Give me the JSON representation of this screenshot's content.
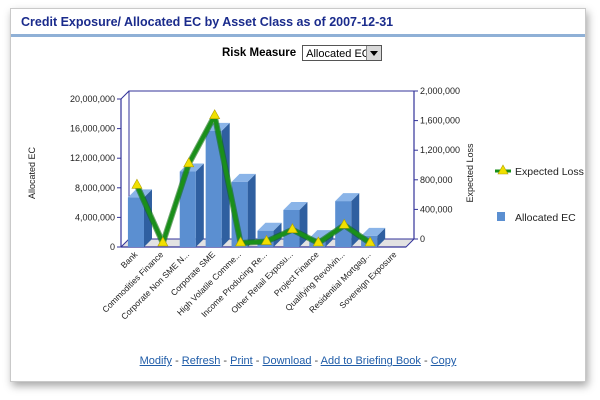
{
  "header": {
    "title": "Credit Exposure/ Allocated EC by Asset Class as of 2007-12-31"
  },
  "controls": {
    "risk_measure_label": "Risk Measure",
    "risk_measure_value": "Allocated EC"
  },
  "links": [
    {
      "label": "Modify"
    },
    {
      "label": "Refresh"
    },
    {
      "label": "Print"
    },
    {
      "label": "Download"
    },
    {
      "label": "Add to Briefing Book"
    },
    {
      "label": "Copy"
    }
  ],
  "links_separator": "-",
  "colors": {
    "bar": "#5b8fd1",
    "line": "#1a8f1a",
    "marker": "#f0e000",
    "title": "#1a2b8c",
    "link": "#1f5ca8"
  },
  "chart_data": {
    "type": "bar",
    "categories": [
      "Bank",
      "Commodities Finance",
      "Corporate Non SME N...",
      "Corporate SME",
      "High Volatile Comme...",
      "Income Producing Re...",
      "Other Retail Exposu...",
      "Project Finance",
      "Qualifying Revolvin...",
      "Residential Mortgag...",
      "Sovereign Exposure"
    ],
    "series": [
      {
        "name": "Allocated EC",
        "axis": "left",
        "type": "bar",
        "values": [
          6700000,
          0,
          10200000,
          15700000,
          8800000,
          2200000,
          5000000,
          1200000,
          6200000,
          1500000,
          0
        ]
      },
      {
        "name": "Expected Loss",
        "axis": "right",
        "type": "line",
        "values": [
          780000,
          0,
          1070000,
          1720000,
          0,
          20000,
          180000,
          0,
          240000,
          0,
          0
        ]
      }
    ],
    "ylabel": "Allocated EC",
    "y2label": "Expected Loss",
    "ylim": [
      0,
      20000000
    ],
    "y2lim": [
      0,
      2000000
    ],
    "yticks": [
      "0",
      "4,000,000",
      "8,000,000",
      "12,000,000",
      "16,000,000",
      "20,000,000"
    ],
    "y2ticks": [
      "0",
      "400,000",
      "800,000",
      "1,200,000",
      "1,600,000",
      "2,000,000"
    ],
    "legend": "right",
    "grid": false
  }
}
